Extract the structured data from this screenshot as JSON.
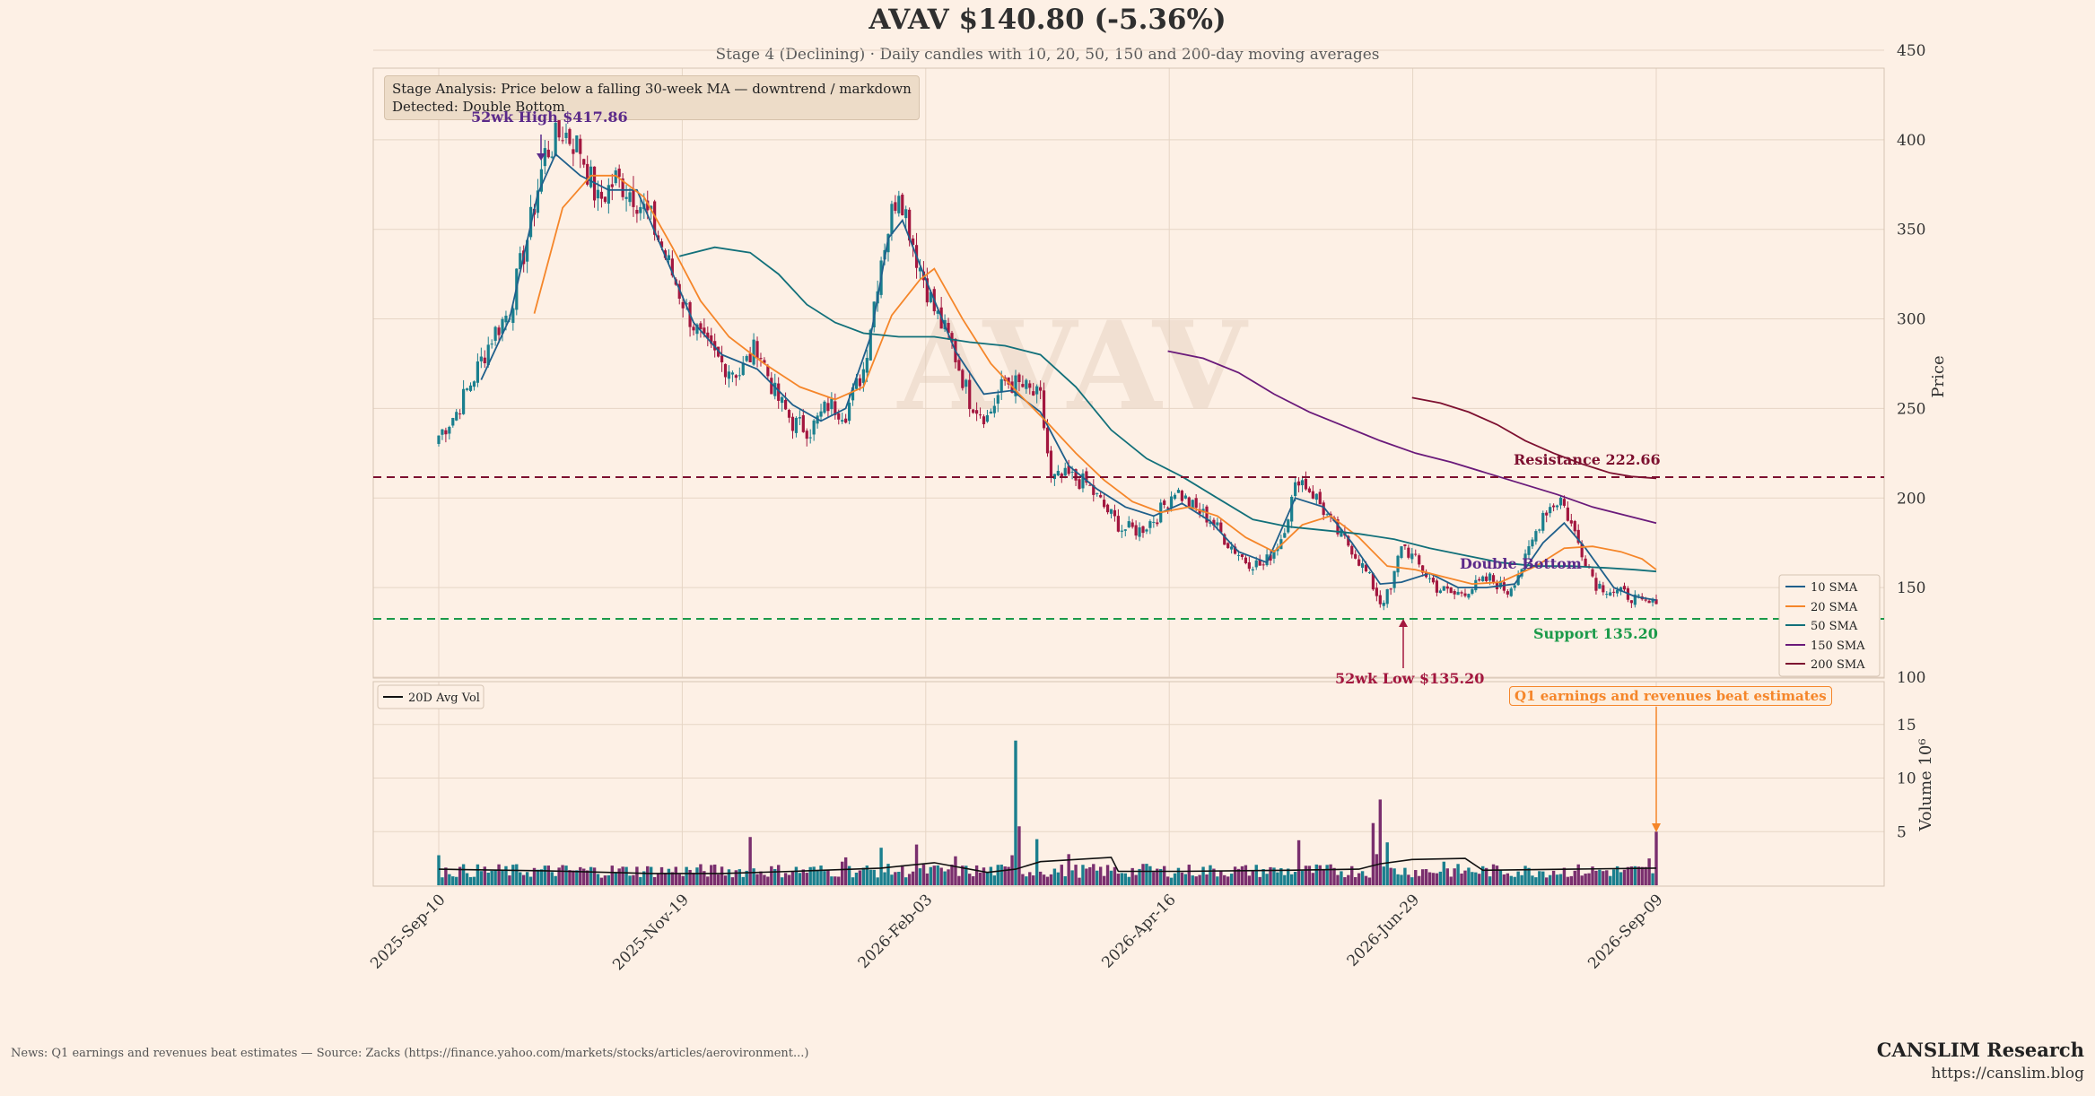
{
  "header": {
    "title": "AVAV  $140.80  (-5.36%)",
    "subtitle": "Stage 4 (Declining)  ·  Daily candles with 10, 20, 50, 150 and 200-day moving averages"
  },
  "stage_box": {
    "line1": "Stage Analysis: Price below a falling 30-week MA — downtrend / markdown",
    "line2": "Detected: Double Bottom"
  },
  "watermark": "AVAV",
  "annotations": {
    "high": "52wk High $417.86",
    "low": "52wk Low $135.20",
    "resistance": "Resistance 222.66",
    "support": "Support 135.20",
    "pattern": "Double Bottom",
    "news": "Q1 earnings and revenues beat estimates"
  },
  "footer": {
    "news": "News: Q1 earnings and revenues beat estimates — Source: Zacks (https://finance.yahoo.com/markets/stocks/articles/aerovironment...)",
    "brand": "CANSLIM Research",
    "url": "https://canslim.blog"
  },
  "colors": {
    "background": "#fdf0e5",
    "up": "#1a7f8e",
    "down": "#a3173f",
    "sma10": "#1f5f8b",
    "sma20": "#f5862a",
    "sma50": "#12707a",
    "sma150": "#6a1a7a",
    "sma200": "#7d1030",
    "resistance": "#7d1030",
    "support": "#1b9a4a",
    "volume_up": "#1a7f8e",
    "volume_down": "#7a2f6e",
    "avgvol": "#111111"
  },
  "chart_data": {
    "type": "candlestick",
    "ticker": "AVAV",
    "last_price": 140.8,
    "change_pct": -5.36,
    "x_ticks": [
      "2025-Sep-10",
      "2025-Nov-19",
      "2026-Feb-03",
      "2026-Apr-16",
      "2026-Jun-29",
      "2026-Sep-09"
    ],
    "price_axis": {
      "label": "Price",
      "ticks": [
        100,
        150,
        200,
        250,
        300,
        350,
        400,
        450
      ],
      "range": [
        98,
        460
      ]
    },
    "volume_axis": {
      "label": "Volume 10⁶",
      "ticks": [
        5,
        10,
        15
      ],
      "range": [
        0,
        19
      ]
    },
    "legend": {
      "price": [
        "10 SMA",
        "20 SMA",
        "50 SMA",
        "150 SMA",
        "200 SMA"
      ],
      "volume": [
        "20D Avg Vol"
      ],
      "price_placement": "lower-right",
      "volume_placement": "upper-left"
    },
    "price_points": [
      {
        "t": 0,
        "p": 235
      },
      {
        "t": 5,
        "p": 248
      },
      {
        "t": 10,
        "p": 268
      },
      {
        "t": 15,
        "p": 290
      },
      {
        "t": 20,
        "p": 305
      },
      {
        "t": 25,
        "p": 345
      },
      {
        "t": 30,
        "p": 392
      },
      {
        "t": 35,
        "p": 405
      },
      {
        "t": 40,
        "p": 395
      },
      {
        "t": 45,
        "p": 365
      },
      {
        "t": 50,
        "p": 378
      },
      {
        "t": 55,
        "p": 370
      },
      {
        "t": 60,
        "p": 355
      },
      {
        "t": 65,
        "p": 330
      },
      {
        "t": 70,
        "p": 305
      },
      {
        "t": 75,
        "p": 285
      },
      {
        "t": 80,
        "p": 275
      },
      {
        "t": 85,
        "p": 270
      },
      {
        "t": 90,
        "p": 285
      },
      {
        "t": 95,
        "p": 258
      },
      {
        "t": 100,
        "p": 242
      },
      {
        "t": 105,
        "p": 238
      },
      {
        "t": 110,
        "p": 252
      },
      {
        "t": 115,
        "p": 248
      },
      {
        "t": 120,
        "p": 272
      },
      {
        "t": 125,
        "p": 335
      },
      {
        "t": 130,
        "p": 375
      },
      {
        "t": 135,
        "p": 335
      },
      {
        "t": 140,
        "p": 305
      },
      {
        "t": 145,
        "p": 285
      },
      {
        "t": 150,
        "p": 255
      },
      {
        "t": 155,
        "p": 245
      },
      {
        "t": 160,
        "p": 265
      },
      {
        "t": 165,
        "p": 262
      },
      {
        "t": 170,
        "p": 255
      },
      {
        "t": 173,
        "p": 210
      },
      {
        "t": 178,
        "p": 212
      },
      {
        "t": 183,
        "p": 208
      },
      {
        "t": 188,
        "p": 195
      },
      {
        "t": 193,
        "p": 183
      },
      {
        "t": 198,
        "p": 182
      },
      {
        "t": 203,
        "p": 190
      },
      {
        "t": 208,
        "p": 205
      },
      {
        "t": 213,
        "p": 195
      },
      {
        "t": 218,
        "p": 188
      },
      {
        "t": 223,
        "p": 175
      },
      {
        "t": 228,
        "p": 165
      },
      {
        "t": 233,
        "p": 162
      },
      {
        "t": 238,
        "p": 178
      },
      {
        "t": 243,
        "p": 212
      },
      {
        "t": 248,
        "p": 200
      },
      {
        "t": 253,
        "p": 183
      },
      {
        "t": 258,
        "p": 172
      },
      {
        "t": 263,
        "p": 155
      },
      {
        "t": 266,
        "p": 142
      },
      {
        "t": 269,
        "p": 148
      },
      {
        "t": 272,
        "p": 175
      },
      {
        "t": 277,
        "p": 162
      },
      {
        "t": 282,
        "p": 150
      },
      {
        "t": 287,
        "p": 146
      },
      {
        "t": 292,
        "p": 150
      },
      {
        "t": 297,
        "p": 155
      },
      {
        "t": 302,
        "p": 148
      },
      {
        "t": 307,
        "p": 165
      },
      {
        "t": 312,
        "p": 192
      },
      {
        "t": 317,
        "p": 200
      },
      {
        "t": 322,
        "p": 175
      },
      {
        "t": 327,
        "p": 152
      },
      {
        "t": 332,
        "p": 148
      },
      {
        "t": 337,
        "p": 145
      },
      {
        "t": 340,
        "p": 141
      },
      {
        "t": 344,
        "p": 140.8
      }
    ],
    "sma10": [
      {
        "t": 12,
        "p": 266
      },
      {
        "t": 20,
        "p": 300
      },
      {
        "t": 28,
        "p": 370
      },
      {
        "t": 33,
        "p": 392
      },
      {
        "t": 40,
        "p": 380
      },
      {
        "t": 48,
        "p": 372
      },
      {
        "t": 56,
        "p": 372
      },
      {
        "t": 64,
        "p": 335
      },
      {
        "t": 72,
        "p": 298
      },
      {
        "t": 80,
        "p": 280
      },
      {
        "t": 90,
        "p": 272
      },
      {
        "t": 100,
        "p": 252
      },
      {
        "t": 108,
        "p": 243
      },
      {
        "t": 115,
        "p": 250
      },
      {
        "t": 122,
        "p": 290
      },
      {
        "t": 127,
        "p": 345
      },
      {
        "t": 131,
        "p": 355
      },
      {
        "t": 138,
        "p": 320
      },
      {
        "t": 146,
        "p": 282
      },
      {
        "t": 154,
        "p": 258
      },
      {
        "t": 162,
        "p": 260
      },
      {
        "t": 170,
        "p": 248
      },
      {
        "t": 178,
        "p": 218
      },
      {
        "t": 186,
        "p": 205
      },
      {
        "t": 194,
        "p": 195
      },
      {
        "t": 202,
        "p": 190
      },
      {
        "t": 210,
        "p": 197
      },
      {
        "t": 218,
        "p": 187
      },
      {
        "t": 226,
        "p": 170
      },
      {
        "t": 234,
        "p": 164
      },
      {
        "t": 242,
        "p": 200
      },
      {
        "t": 250,
        "p": 195
      },
      {
        "t": 258,
        "p": 175
      },
      {
        "t": 266,
        "p": 152
      },
      {
        "t": 272,
        "p": 153
      },
      {
        "t": 280,
        "p": 158
      },
      {
        "t": 288,
        "p": 150
      },
      {
        "t": 296,
        "p": 150
      },
      {
        "t": 304,
        "p": 152
      },
      {
        "t": 312,
        "p": 175
      },
      {
        "t": 318,
        "p": 186
      },
      {
        "t": 324,
        "p": 172
      },
      {
        "t": 332,
        "p": 150
      },
      {
        "t": 338,
        "p": 145
      },
      {
        "t": 344,
        "p": 143
      }
    ],
    "sma20": [
      {
        "t": 27,
        "p": 303
      },
      {
        "t": 35,
        "p": 362
      },
      {
        "t": 43,
        "p": 380
      },
      {
        "t": 50,
        "p": 380
      },
      {
        "t": 58,
        "p": 368
      },
      {
        "t": 66,
        "p": 340
      },
      {
        "t": 74,
        "p": 310
      },
      {
        "t": 82,
        "p": 290
      },
      {
        "t": 92,
        "p": 275
      },
      {
        "t": 102,
        "p": 262
      },
      {
        "t": 112,
        "p": 255
      },
      {
        "t": 120,
        "p": 262
      },
      {
        "t": 128,
        "p": 302
      },
      {
        "t": 136,
        "p": 322
      },
      {
        "t": 140,
        "p": 328
      },
      {
        "t": 148,
        "p": 300
      },
      {
        "t": 156,
        "p": 275
      },
      {
        "t": 164,
        "p": 258
      },
      {
        "t": 172,
        "p": 242
      },
      {
        "t": 180,
        "p": 225
      },
      {
        "t": 188,
        "p": 210
      },
      {
        "t": 196,
        "p": 198
      },
      {
        "t": 204,
        "p": 192
      },
      {
        "t": 212,
        "p": 195
      },
      {
        "t": 220,
        "p": 190
      },
      {
        "t": 228,
        "p": 178
      },
      {
        "t": 236,
        "p": 170
      },
      {
        "t": 244,
        "p": 185
      },
      {
        "t": 252,
        "p": 190
      },
      {
        "t": 260,
        "p": 178
      },
      {
        "t": 268,
        "p": 162
      },
      {
        "t": 276,
        "p": 160
      },
      {
        "t": 284,
        "p": 156
      },
      {
        "t": 292,
        "p": 152
      },
      {
        "t": 300,
        "p": 153
      },
      {
        "t": 310,
        "p": 162
      },
      {
        "t": 318,
        "p": 172
      },
      {
        "t": 326,
        "p": 173
      },
      {
        "t": 334,
        "p": 170
      },
      {
        "t": 340,
        "p": 166
      },
      {
        "t": 344,
        "p": 160
      }
    ],
    "sma50": [
      {
        "t": 68,
        "p": 335
      },
      {
        "t": 78,
        "p": 340
      },
      {
        "t": 88,
        "p": 337
      },
      {
        "t": 96,
        "p": 325
      },
      {
        "t": 104,
        "p": 308
      },
      {
        "t": 112,
        "p": 298
      },
      {
        "t": 120,
        "p": 292
      },
      {
        "t": 130,
        "p": 290
      },
      {
        "t": 140,
        "p": 290
      },
      {
        "t": 150,
        "p": 287
      },
      {
        "t": 160,
        "p": 285
      },
      {
        "t": 170,
        "p": 280
      },
      {
        "t": 180,
        "p": 262
      },
      {
        "t": 190,
        "p": 238
      },
      {
        "t": 200,
        "p": 222
      },
      {
        "t": 210,
        "p": 212
      },
      {
        "t": 220,
        "p": 200
      },
      {
        "t": 230,
        "p": 188
      },
      {
        "t": 240,
        "p": 184
      },
      {
        "t": 250,
        "p": 182
      },
      {
        "t": 260,
        "p": 180
      },
      {
        "t": 270,
        "p": 177
      },
      {
        "t": 280,
        "p": 172
      },
      {
        "t": 290,
        "p": 168
      },
      {
        "t": 300,
        "p": 164
      },
      {
        "t": 310,
        "p": 162
      },
      {
        "t": 320,
        "p": 162
      },
      {
        "t": 330,
        "p": 161
      },
      {
        "t": 338,
        "p": 160
      },
      {
        "t": 344,
        "p": 159
      }
    ],
    "sma150": [
      {
        "t": 206,
        "p": 282
      },
      {
        "t": 216,
        "p": 278
      },
      {
        "t": 226,
        "p": 270
      },
      {
        "t": 236,
        "p": 258
      },
      {
        "t": 246,
        "p": 248
      },
      {
        "t": 256,
        "p": 240
      },
      {
        "t": 266,
        "p": 232
      },
      {
        "t": 276,
        "p": 225
      },
      {
        "t": 286,
        "p": 220
      },
      {
        "t": 296,
        "p": 214
      },
      {
        "t": 306,
        "p": 208
      },
      {
        "t": 316,
        "p": 202
      },
      {
        "t": 326,
        "p": 195
      },
      {
        "t": 336,
        "p": 190
      },
      {
        "t": 344,
        "p": 186
      }
    ],
    "sma200": [
      {
        "t": 275,
        "p": 256
      },
      {
        "t": 283,
        "p": 253
      },
      {
        "t": 291,
        "p": 248
      },
      {
        "t": 299,
        "p": 241
      },
      {
        "t": 307,
        "p": 232
      },
      {
        "t": 315,
        "p": 225
      },
      {
        "t": 323,
        "p": 219
      },
      {
        "t": 331,
        "p": 214
      },
      {
        "t": 337,
        "p": 212
      },
      {
        "t": 344,
        "p": 211
      }
    ],
    "resistance": 222.66,
    "support": 135.2,
    "high_52wk": 417.86,
    "low_52wk": 135.2,
    "volume_spikes": [
      {
        "t": 0,
        "v": 2.8
      },
      {
        "t": 88,
        "v": 4.5
      },
      {
        "t": 114,
        "v": 2.2
      },
      {
        "t": 115,
        "v": 2.6
      },
      {
        "t": 125,
        "v": 3.5
      },
      {
        "t": 135,
        "v": 3.8
      },
      {
        "t": 146,
        "v": 2.7
      },
      {
        "t": 162,
        "v": 2.8
      },
      {
        "t": 163,
        "v": 13.5
      },
      {
        "t": 164,
        "v": 5.5
      },
      {
        "t": 169,
        "v": 4.3
      },
      {
        "t": 178,
        "v": 2.9
      },
      {
        "t": 200,
        "v": 2.0
      },
      {
        "t": 243,
        "v": 4.2
      },
      {
        "t": 264,
        "v": 5.8
      },
      {
        "t": 265,
        "v": 2.9
      },
      {
        "t": 266,
        "v": 8.0
      },
      {
        "t": 268,
        "v": 4.0
      },
      {
        "t": 284,
        "v": 2.2
      },
      {
        "t": 342,
        "v": 2.5
      },
      {
        "t": 344,
        "v": 5.0
      }
    ],
    "avg_volume": [
      {
        "t": 0,
        "v": 1.5
      },
      {
        "t": 30,
        "v": 1.35
      },
      {
        "t": 60,
        "v": 1.1
      },
      {
        "t": 80,
        "v": 1.1
      },
      {
        "t": 100,
        "v": 1.3
      },
      {
        "t": 125,
        "v": 1.6
      },
      {
        "t": 140,
        "v": 2.1
      },
      {
        "t": 155,
        "v": 1.2
      },
      {
        "t": 163,
        "v": 1.5
      },
      {
        "t": 170,
        "v": 2.2
      },
      {
        "t": 190,
        "v": 2.6
      },
      {
        "t": 192,
        "v": 1.3
      },
      {
        "t": 210,
        "v": 1.3
      },
      {
        "t": 240,
        "v": 1.4
      },
      {
        "t": 260,
        "v": 1.5
      },
      {
        "t": 266,
        "v": 2.0
      },
      {
        "t": 275,
        "v": 2.4
      },
      {
        "t": 290,
        "v": 2.5
      },
      {
        "t": 295,
        "v": 1.4
      },
      {
        "t": 320,
        "v": 1.5
      },
      {
        "t": 344,
        "v": 1.6
      }
    ]
  }
}
